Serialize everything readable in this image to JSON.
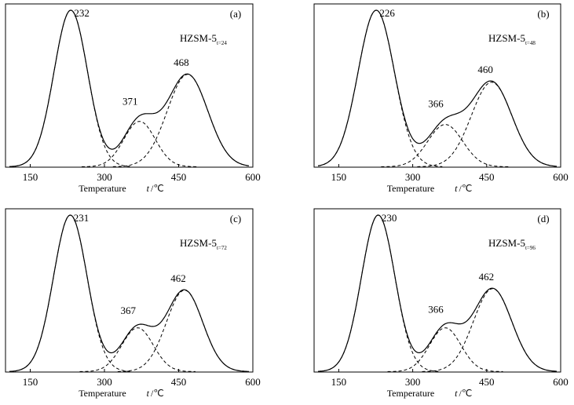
{
  "chart_data": [
    {
      "type": "line",
      "panel_label": "(a)",
      "sample": "HZSM-5",
      "sample_subscript": "t=24",
      "xlabel_text": "Temperature",
      "xlabel_symbol": "t",
      "xlabel_unit": "/℃",
      "xlim": [
        100,
        600
      ],
      "xticks": [
        150,
        300,
        450,
        600
      ],
      "ylim": [
        0,
        1.0
      ],
      "grid": false,
      "peaks": [
        {
          "center": 232,
          "height": 1.0,
          "width": 48,
          "label": "232"
        },
        {
          "center": 371,
          "height": 0.29,
          "width": 45,
          "label": "371"
        },
        {
          "center": 468,
          "height": 0.59,
          "width": 58,
          "label": "468"
        }
      ]
    },
    {
      "type": "line",
      "panel_label": "(b)",
      "sample": "HZSM-5",
      "sample_subscript": "t=48",
      "xlabel_text": "Temperature",
      "xlabel_symbol": "t",
      "xlabel_unit": "/℃",
      "xlim": [
        100,
        600
      ],
      "xticks": [
        150,
        300,
        450,
        600
      ],
      "ylim": [
        0,
        1.0
      ],
      "grid": false,
      "peaks": [
        {
          "center": 226,
          "height": 1.0,
          "width": 52,
          "label": "226"
        },
        {
          "center": 366,
          "height": 0.27,
          "width": 50,
          "label": "366"
        },
        {
          "center": 460,
          "height": 0.54,
          "width": 58,
          "label": "460"
        }
      ]
    },
    {
      "type": "line",
      "panel_label": "(c)",
      "sample": "HZSM-5",
      "sample_subscript": "t=72",
      "xlabel_text": "Temperature",
      "xlabel_symbol": "t",
      "xlabel_unit": "/℃",
      "xlim": [
        100,
        600
      ],
      "xticks": [
        150,
        300,
        450,
        600
      ],
      "ylim": [
        0,
        1.0
      ],
      "grid": false,
      "peaks": [
        {
          "center": 231,
          "height": 1.0,
          "width": 48,
          "label": "231"
        },
        {
          "center": 367,
          "height": 0.28,
          "width": 45,
          "label": "367"
        },
        {
          "center": 462,
          "height": 0.52,
          "width": 52,
          "label": "462"
        }
      ]
    },
    {
      "type": "line",
      "panel_label": "(d)",
      "sample": "HZSM-5",
      "sample_subscript": "t=96",
      "xlabel_text": "Temperature",
      "xlabel_symbol": "t",
      "xlabel_unit": "/℃",
      "xlim": [
        100,
        600
      ],
      "xticks": [
        150,
        300,
        450,
        600
      ],
      "ylim": [
        0,
        1.0
      ],
      "grid": false,
      "peaks": [
        {
          "center": 230,
          "height": 1.0,
          "width": 48,
          "label": "230"
        },
        {
          "center": 366,
          "height": 0.28,
          "width": 45,
          "label": "366"
        },
        {
          "center": 462,
          "height": 0.53,
          "width": 55,
          "label": "462"
        }
      ]
    }
  ]
}
